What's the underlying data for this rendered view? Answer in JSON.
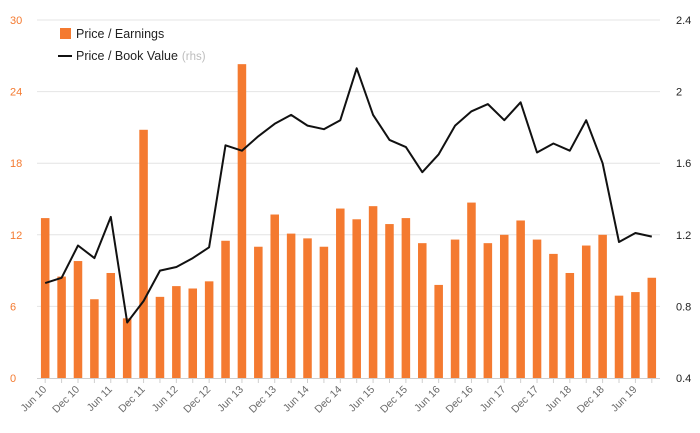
{
  "chart_data": {
    "type": "bar+line",
    "categories": [
      "Jun 10",
      "",
      "Dec 10",
      "",
      "Jun 11",
      "",
      "Dec 11",
      "",
      "Jun 12",
      "",
      "Dec 12",
      "",
      "Jun 13",
      "",
      "Dec 13",
      "",
      "Jun 14",
      "",
      "Dec 14",
      "",
      "Jun 15",
      "",
      "Dec 15",
      "",
      "Jun 16",
      "",
      "Dec 16",
      "",
      "Jun 17",
      "",
      "Dec 17",
      "",
      "Jun 18",
      "",
      "Dec 18",
      "",
      "Jun 19",
      ""
    ],
    "series": [
      {
        "name": "Price / Earnings",
        "kind": "bar",
        "axis": "left",
        "color": "#f47a30",
        "values": [
          13.4,
          8.5,
          9.8,
          6.6,
          8.8,
          5.0,
          20.8,
          6.8,
          7.7,
          7.5,
          8.1,
          11.5,
          26.3,
          11.0,
          13.7,
          12.1,
          11.7,
          11.0,
          14.2,
          13.3,
          14.4,
          12.9,
          13.4,
          11.3,
          7.8,
          11.6,
          14.7,
          11.3,
          12.0,
          13.2,
          11.6,
          10.4,
          8.8,
          11.1,
          12.0,
          6.9,
          7.2,
          8.4
        ]
      },
      {
        "name": "Price / Book Value",
        "kind": "line",
        "axis": "right",
        "color": "#111111",
        "values": [
          0.93,
          0.96,
          1.14,
          1.07,
          1.3,
          0.71,
          0.83,
          1.0,
          1.02,
          1.07,
          1.13,
          1.7,
          1.67,
          1.75,
          1.82,
          1.87,
          1.81,
          1.79,
          1.84,
          2.13,
          1.87,
          1.73,
          1.69,
          1.55,
          1.65,
          1.81,
          1.89,
          1.93,
          1.84,
          1.94,
          1.66,
          1.71,
          1.67,
          1.84,
          1.6,
          1.16,
          1.21,
          1.19
        ]
      }
    ],
    "legend": {
      "items": [
        "Price / Earnings",
        "Price / Book Value"
      ],
      "note": "(rhs)",
      "placement": "top-left"
    },
    "left_axis": {
      "ylim": [
        0,
        30
      ],
      "ticks": [
        "0",
        "6",
        "12",
        "18",
        "24",
        "30"
      ]
    },
    "right_axis": {
      "ylim": [
        0.4,
        2.4
      ],
      "ticks": [
        "0.4",
        "0.8",
        "1.2",
        "1.6",
        "2",
        "2.4"
      ]
    },
    "x_tick_labels": [
      "Jun 10",
      "Dec 10",
      "Jun 11",
      "Dec 11",
      "Jun 12",
      "Dec 12",
      "Jun 13",
      "Dec 13",
      "Jun 14",
      "Dec 14",
      "Jun 15",
      "Dec 15",
      "Jun 16",
      "Dec 16",
      "Jun 17",
      "Dec 17",
      "Jun 18",
      "Dec 18",
      "Jun 19"
    ],
    "grid": "horizontal",
    "colors": {
      "bar": "#f47a30",
      "line": "#111111",
      "grid": "#e4e4e4",
      "left_tick": "#f47a30",
      "right_tick": "#222222",
      "x_tick": "#6a6a6a"
    }
  }
}
